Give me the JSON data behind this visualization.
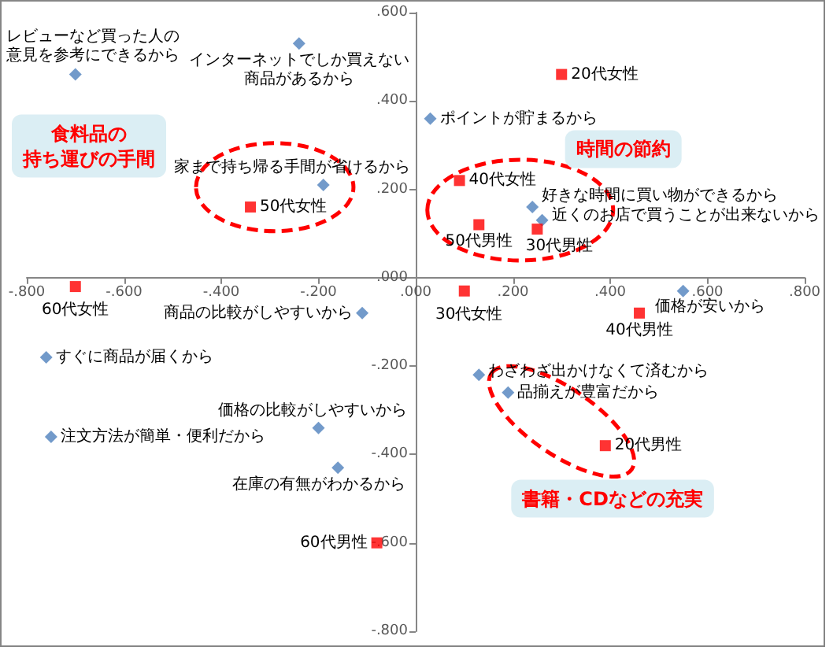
{
  "chart_data": {
    "type": "scatter",
    "xlim": [
      -0.8,
      0.8
    ],
    "ylim": [
      -0.8,
      0.6
    ],
    "xticks": [
      {
        "value": -0.8,
        "label": "-.800"
      },
      {
        "value": -0.6,
        "label": "-.600"
      },
      {
        "value": -0.4,
        "label": "-.400"
      },
      {
        "value": -0.2,
        "label": "-.200"
      },
      {
        "value": 0,
        "label": ".000"
      },
      {
        "value": 0.2,
        "label": ".200"
      },
      {
        "value": 0.4,
        "label": ".400"
      },
      {
        "value": 0.6,
        "label": ".600"
      },
      {
        "value": 0.8,
        "label": ".800"
      }
    ],
    "yticks": [
      {
        "value": -0.8,
        "label": "-.800"
      },
      {
        "value": -0.6,
        "label": "-.600"
      },
      {
        "value": -0.4,
        "label": "-.400"
      },
      {
        "value": -0.2,
        "label": "-.200"
      },
      {
        "value": 0,
        "label": ".000"
      },
      {
        "value": 0.2,
        "label": ".200"
      },
      {
        "value": 0.4,
        "label": ".400"
      },
      {
        "value": 0.6,
        "label": ".600"
      }
    ],
    "series": [
      {
        "color": "#4f81bd",
        "marker": "diamond",
        "x": [
          -0.7,
          -0.24,
          -0.19,
          0.03,
          0.24,
          0.26,
          0.55,
          0.13,
          0.19,
          -0.11,
          -0.76,
          -0.75,
          -0.2,
          -0.16
        ],
        "values": [
          0.46,
          0.53,
          0.21,
          0.36,
          0.16,
          0.13,
          -0.03,
          -0.22,
          -0.26,
          -0.08,
          -0.18,
          -0.36,
          -0.34,
          -0.43
        ]
      },
      {
        "color": "#ff0000",
        "marker": "square",
        "x": [
          0.3,
          -0.34,
          0.09,
          0.13,
          0.25,
          0.1,
          -0.7,
          0.46,
          0.39,
          -0.08
        ],
        "values": [
          0.46,
          0.16,
          0.22,
          0.12,
          0.11,
          -0.03,
          -0.02,
          -0.08,
          -0.38,
          -0.6
        ]
      }
    ],
    "annotations": [
      "食料品の持ち運びの手間",
      "時間の節約",
      "書籍・CDなどの充実",
      {
        "text": "レビューなど買った人の意見を参考にできるから",
        "x": -0.7,
        "y": 0.46
      },
      {
        "text": "インターネットでしか買えない商品があるから",
        "x": -0.24,
        "y": 0.53
      },
      {
        "text": "家まで持ち帰る手間が省けるから",
        "x": -0.19,
        "y": 0.21
      },
      {
        "text": "ポイントが貯まるから",
        "x": 0.03,
        "y": 0.36
      },
      {
        "text": "好きな時間に買い物ができるから",
        "x": 0.24,
        "y": 0.16
      },
      {
        "text": "近くのお店で買うことが出来ないから",
        "x": 0.26,
        "y": 0.13
      },
      {
        "text": "価格が安いから",
        "x": 0.55,
        "y": -0.03
      },
      {
        "text": "わざわざ出かけなくて済むから",
        "x": 0.13,
        "y": -0.22
      },
      {
        "text": "品揃えが豊富だから",
        "x": 0.19,
        "y": -0.26
      },
      {
        "text": "商品の比較がしやすいから",
        "x": -0.11,
        "y": -0.08
      },
      {
        "text": "すぐに商品が届くから",
        "x": -0.76,
        "y": -0.18
      },
      {
        "text": "注文方法が簡単・便利だから",
        "x": -0.75,
        "y": -0.36
      },
      {
        "text": "価格の比較がしやすいから",
        "x": -0.2,
        "y": -0.34
      },
      {
        "text": "在庫の有無がわかるから",
        "x": -0.16,
        "y": -0.43
      },
      {
        "text": "20代女性",
        "x": 0.3,
        "y": 0.46
      },
      {
        "text": "50代女性",
        "x": -0.34,
        "y": 0.16
      },
      {
        "text": "40代女性",
        "x": 0.09,
        "y": 0.22
      },
      {
        "text": "50代男性",
        "x": 0.13,
        "y": 0.12
      },
      {
        "text": "30代男性",
        "x": 0.25,
        "y": 0.11
      },
      {
        "text": "30代女性",
        "x": 0.1,
        "y": -0.03
      },
      {
        "text": "60代女性",
        "x": -0.7,
        "y": -0.02
      },
      {
        "text": "40代男性",
        "x": 0.46,
        "y": -0.08
      },
      {
        "text": "20代男性",
        "x": 0.39,
        "y": -0.38
      },
      {
        "text": "60代男性",
        "x": -0.08,
        "y": -0.6
      }
    ]
  }
}
